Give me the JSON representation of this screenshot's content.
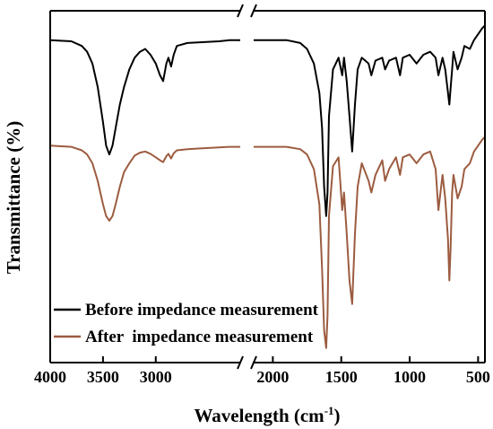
{
  "chart_data": {
    "type": "line",
    "xlabel": "Wavelength (cm",
    "xlabel_sup": "-1",
    "xlabel_close": ")",
    "ylabel": "Transmittance (%)",
    "xlim": [
      4000,
      450
    ],
    "axis_break": [
      2200,
      2140
    ],
    "xticks": [
      {
        "value": 4000,
        "label": "4000"
      },
      {
        "value": 3500,
        "label": "3500"
      },
      {
        "value": 3000,
        "label": "3000"
      },
      {
        "value": 2000,
        "label": "2000"
      },
      {
        "value": 1500,
        "label": "1500"
      },
      {
        "value": 1000,
        "label": "1000"
      },
      {
        "value": 500,
        "label": "500"
      }
    ],
    "grid": false,
    "legend_position": "bottom-left",
    "series": [
      {
        "name": "Before impedance measurement",
        "color": "#000000",
        "x": [
          4000,
          3800,
          3700,
          3650,
          3600,
          3550,
          3500,
          3470,
          3440,
          3410,
          3380,
          3340,
          3300,
          3250,
          3200,
          3150,
          3100,
          3050,
          3000,
          2960,
          2930,
          2900,
          2880,
          2855,
          2830,
          2800,
          2700,
          2600,
          2500,
          2400,
          2300,
          2200,
          2140,
          2000,
          1900,
          1800,
          1750,
          1700,
          1660,
          1640,
          1625,
          1610,
          1600,
          1590,
          1560,
          1520,
          1493,
          1480,
          1460,
          1440,
          1420,
          1400,
          1380,
          1350,
          1300,
          1280,
          1250,
          1200,
          1180,
          1150,
          1100,
          1070,
          1050,
          1000,
          950,
          900,
          850,
          810,
          790,
          760,
          740,
          720,
          710,
          700,
          690,
          680,
          650,
          620,
          600,
          560,
          530,
          500,
          470,
          450
        ],
        "y": [
          55,
          54.8,
          54,
          53,
          51,
          47,
          41,
          37,
          35.5,
          37,
          40,
          44,
          47,
          50,
          52,
          53,
          53.5,
          52.5,
          51,
          49,
          48,
          51,
          52,
          50.5,
          52.5,
          54,
          54.5,
          54.6,
          54.7,
          54.8,
          55,
          55,
          55,
          55,
          55,
          54.5,
          53.5,
          51,
          46,
          40,
          30,
          25,
          29,
          42,
          50,
          52,
          49,
          52,
          48,
          42,
          36,
          44,
          50,
          52,
          51,
          49,
          51.5,
          52,
          50,
          51.5,
          52,
          49,
          52,
          52.5,
          51,
          52.5,
          53,
          52,
          49,
          52,
          50,
          46,
          44,
          47,
          50,
          53,
          50,
          52,
          54,
          53.5,
          55,
          56,
          57,
          57.5
        ]
      },
      {
        "name": "After  impedance measurement",
        "color": "#9c5c40",
        "x": [
          4000,
          3800,
          3700,
          3650,
          3600,
          3550,
          3500,
          3470,
          3440,
          3410,
          3380,
          3340,
          3300,
          3250,
          3200,
          3150,
          3100,
          3050,
          3000,
          2960,
          2930,
          2900,
          2880,
          2855,
          2830,
          2800,
          2700,
          2600,
          2500,
          2400,
          2300,
          2200,
          2140,
          2000,
          1900,
          1800,
          1750,
          1700,
          1660,
          1640,
          1625,
          1610,
          1600,
          1590,
          1560,
          1520,
          1493,
          1480,
          1460,
          1440,
          1420,
          1400,
          1380,
          1350,
          1300,
          1280,
          1250,
          1200,
          1180,
          1150,
          1100,
          1070,
          1050,
          1000,
          950,
          900,
          850,
          810,
          790,
          760,
          740,
          720,
          710,
          700,
          690,
          680,
          650,
          620,
          600,
          560,
          530,
          500,
          470,
          450
        ],
        "y": [
          37,
          36.8,
          36.2,
          35.5,
          34,
          31,
          27,
          25,
          24.2,
          25,
          27,
          30,
          32.5,
          34,
          35.3,
          35.8,
          36,
          35.6,
          35,
          34.5,
          34.2,
          35.2,
          35.6,
          34.8,
          35.7,
          36.2,
          36.4,
          36.5,
          36.6,
          36.7,
          36.8,
          36.8,
          36.8,
          36.8,
          36.8,
          36.4,
          35.5,
          33,
          27,
          16,
          5.5,
          2.5,
          8,
          25,
          33.5,
          35,
          26,
          29,
          22,
          14,
          10,
          22,
          30,
          34,
          31,
          29,
          32,
          34.5,
          31,
          33,
          35,
          32,
          35,
          35.5,
          34,
          35.5,
          36,
          33,
          26,
          32,
          28,
          21,
          14,
          20,
          29,
          32,
          28,
          30,
          33,
          34,
          36,
          37,
          38,
          38.5
        ]
      }
    ]
  }
}
